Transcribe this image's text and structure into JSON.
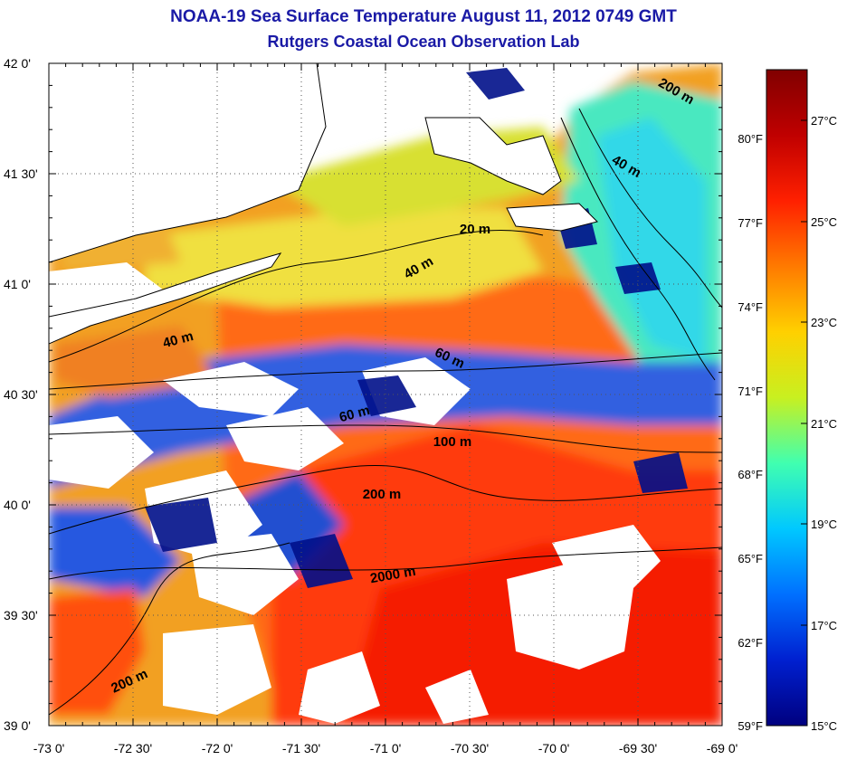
{
  "title": "NOAA-19 Sea Surface Temperature August 11, 2012 0749 GMT",
  "subtitle": "Rutgers Coastal Ocean Observation Lab",
  "lon_labels": [
    "-73 0'",
    "-72 30'",
    "-72 0'",
    "-71 30'",
    "-71 0'",
    "-70 30'",
    "-70 0'",
    "-69 30'",
    "-69 0'"
  ],
  "lat_labels": [
    "42 0'",
    "41 30'",
    "41 0'",
    "40 30'",
    "40 0'",
    "39 30'",
    "39 0'"
  ],
  "f_labels": [
    "80°F",
    "77°F",
    "74°F",
    "71°F",
    "68°F",
    "65°F",
    "62°F",
    "59°F"
  ],
  "c_labels": [
    "27°C",
    "25°C",
    "23°C",
    "21°C",
    "19°C",
    "17°C",
    "15°C"
  ],
  "contour_labels": [
    "200 m",
    "40 m",
    "20 m",
    "40 m",
    "40 m",
    "60 m",
    "60 m",
    "100 m",
    "200 m",
    "2000 m",
    "200 m"
  ],
  "colorbar": {
    "stops": [
      "#800000",
      "#c00000",
      "#ff2000",
      "#ff7a00",
      "#ffd000",
      "#c8f020",
      "#40ffb0",
      "#00c8ff",
      "#0070ff",
      "#0020d0",
      "#00007f"
    ]
  }
}
